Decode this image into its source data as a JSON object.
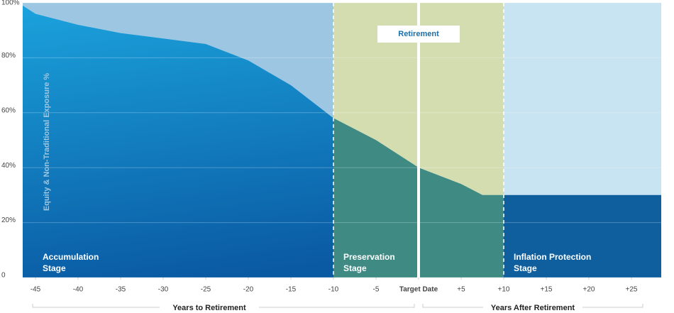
{
  "chart_data": {
    "type": "area",
    "y_label": "Equity & Non-Traditional Exposure %",
    "x": [
      -46.5,
      -45,
      -40,
      -35,
      -30,
      -25,
      -20,
      -15,
      -10,
      -5,
      0,
      5,
      7.5,
      10,
      28.5
    ],
    "values": [
      99,
      96,
      92,
      89,
      87,
      85,
      79,
      70,
      58,
      50,
      40,
      34,
      30,
      30,
      30
    ],
    "xlim": [
      -46.5,
      28.5
    ],
    "ylim": [
      0,
      100
    ],
    "xticks": [
      -45,
      -40,
      -35,
      -30,
      -25,
      -20,
      -15,
      -10,
      -5,
      {
        "value": 0,
        "label": "Target Date"
      },
      {
        "value": 5,
        "label": "+5"
      },
      {
        "value": 10,
        "label": "+10"
      },
      {
        "value": 15,
        "label": "+15"
      },
      {
        "value": 20,
        "label": "+20"
      },
      {
        "value": 25,
        "label": "+25"
      }
    ],
    "yticks": [
      0,
      {
        "value": 20,
        "label": "20%"
      },
      {
        "value": 40,
        "label": "40%"
      },
      {
        "value": 60,
        "label": "60%"
      },
      {
        "value": 80,
        "label": "80%"
      },
      {
        "value": 100,
        "label": "100%"
      }
    ],
    "grid": true,
    "stages": [
      {
        "name": [
          "Accumulation",
          "Stage"
        ],
        "from": -46.5,
        "to": -10,
        "upper_color": "#9cc6e2",
        "lower_color": "#1590d0"
      },
      {
        "name": [
          "Preservation",
          "Stage"
        ],
        "from": -10,
        "to": 10,
        "upper_color": "#d3ddb0",
        "lower_color": "#3f8b84"
      },
      {
        "name": [
          "Inflation Protection",
          "Stage"
        ],
        "from": 10,
        "to": 28.5,
        "upper_color": "#c8e3f1",
        "lower_color": "#0f5f9f"
      }
    ],
    "marker": {
      "label": "Retirement",
      "x": 0
    },
    "x_groups": [
      {
        "label": "Years to Retirement",
        "from": -46.5,
        "to": 0
      },
      {
        "label": "Years After Retirement",
        "from": 0,
        "to": 28.5
      }
    ]
  }
}
